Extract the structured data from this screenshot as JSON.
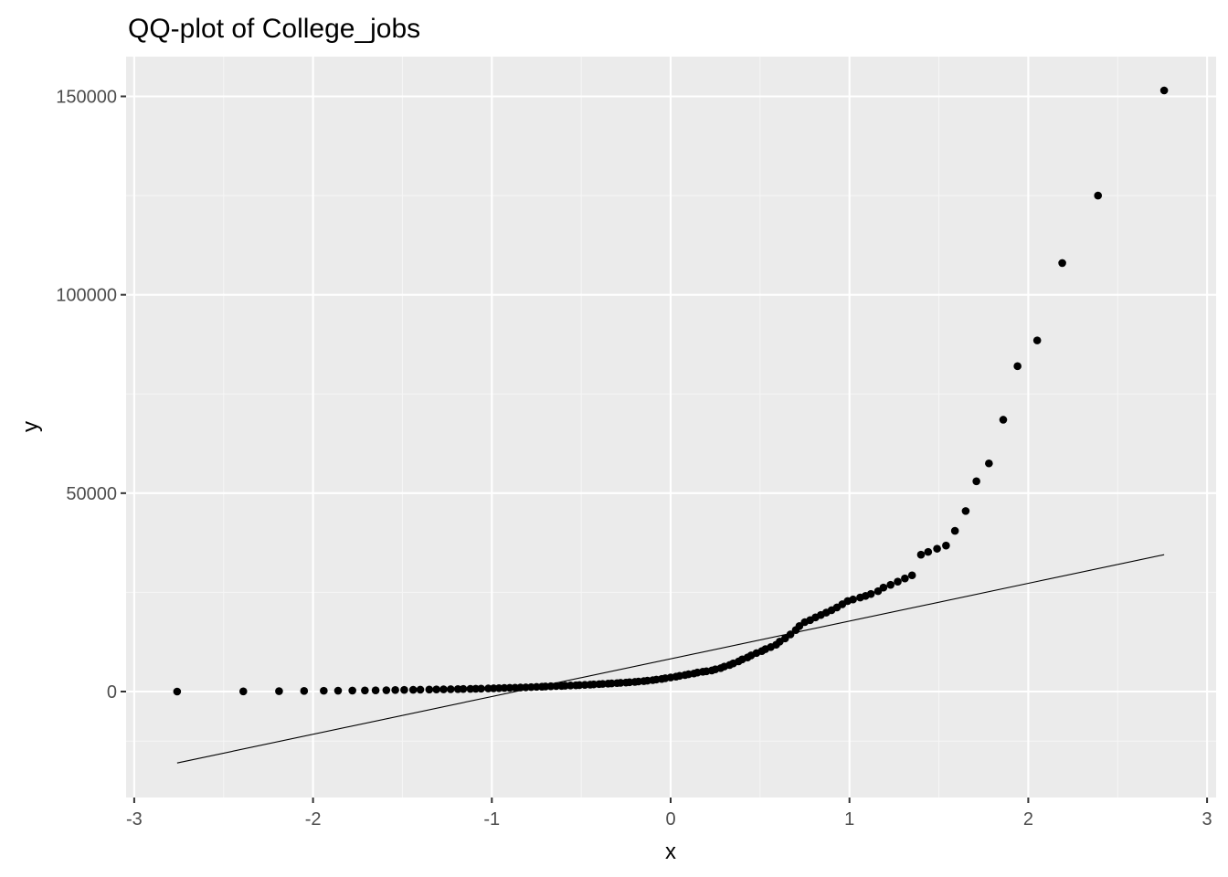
{
  "chart_data": {
    "type": "scatter",
    "title": "QQ-plot of College_jobs",
    "xlabel": "x",
    "ylabel": "y",
    "xlim": [
      -3,
      3
    ],
    "ylim": [
      -25000,
      160000
    ],
    "x_ticks": [
      -3,
      -2,
      -1,
      0,
      1,
      2,
      3
    ],
    "y_ticks": [
      0,
      50000,
      100000,
      150000
    ],
    "x_tick_labels": [
      "-3",
      "-2",
      "-1",
      "0",
      "1",
      "2",
      "3"
    ],
    "y_tick_labels": [
      "0",
      "50000",
      "100000",
      "150000"
    ],
    "grid": true,
    "legend": "none",
    "colors": {
      "panel": "#ebebeb",
      "grid_major": "#ffffff",
      "grid_minor": "#f5f5f5",
      "points": "#000000",
      "line": "#000000"
    },
    "reference_line": {
      "x": [
        -2.76,
        2.76
      ],
      "y": [
        -18000,
        34500
      ]
    },
    "series": [
      {
        "values": [
          [
            -2.76,
            0
          ],
          [
            -2.39,
            50
          ],
          [
            -2.19,
            100
          ],
          [
            -2.05,
            150
          ],
          [
            -1.94,
            200
          ],
          [
            -1.86,
            220
          ],
          [
            -1.78,
            250
          ],
          [
            -1.71,
            280
          ],
          [
            -1.65,
            300
          ],
          [
            -1.59,
            340
          ],
          [
            -1.54,
            380
          ],
          [
            -1.49,
            410
          ],
          [
            -1.44,
            440
          ],
          [
            -1.4,
            470
          ],
          [
            -1.35,
            500
          ],
          [
            -1.31,
            530
          ],
          [
            -1.27,
            560
          ],
          [
            -1.23,
            590
          ],
          [
            -1.19,
            620
          ],
          [
            -1.16,
            650
          ],
          [
            -1.12,
            680
          ],
          [
            -1.09,
            710
          ],
          [
            -1.06,
            740
          ],
          [
            -1.02,
            780
          ],
          [
            -0.99,
            820
          ],
          [
            -0.96,
            860
          ],
          [
            -0.93,
            900
          ],
          [
            -0.9,
            940
          ],
          [
            -0.87,
            980
          ],
          [
            -0.84,
            1020
          ],
          [
            -0.81,
            1060
          ],
          [
            -0.78,
            1120
          ],
          [
            -0.75,
            1180
          ],
          [
            -0.72,
            1230
          ],
          [
            -0.7,
            1280
          ],
          [
            -0.67,
            1330
          ],
          [
            -0.64,
            1380
          ],
          [
            -0.61,
            1430
          ],
          [
            -0.59,
            1480
          ],
          [
            -0.56,
            1530
          ],
          [
            -0.53,
            1580
          ],
          [
            -0.51,
            1630
          ],
          [
            -0.48,
            1690
          ],
          [
            -0.45,
            1750
          ],
          [
            -0.43,
            1810
          ],
          [
            -0.4,
            1870
          ],
          [
            -0.38,
            1930
          ],
          [
            -0.35,
            1990
          ],
          [
            -0.33,
            2060
          ],
          [
            -0.3,
            2130
          ],
          [
            -0.28,
            2200
          ],
          [
            -0.25,
            2270
          ],
          [
            -0.23,
            2350
          ],
          [
            -0.2,
            2440
          ],
          [
            -0.18,
            2530
          ],
          [
            -0.15,
            2630
          ],
          [
            -0.13,
            2750
          ],
          [
            -0.1,
            2880
          ],
          [
            -0.08,
            3020
          ],
          [
            -0.05,
            3180
          ],
          [
            -0.03,
            3350
          ],
          [
            0.0,
            3550
          ],
          [
            0.03,
            3750
          ],
          [
            0.05,
            3950
          ],
          [
            0.08,
            4150
          ],
          [
            0.1,
            4350
          ],
          [
            0.13,
            4550
          ],
          [
            0.15,
            4800
          ],
          [
            0.18,
            5000
          ],
          [
            0.2,
            5100
          ],
          [
            0.23,
            5300
          ],
          [
            0.25,
            5600
          ],
          [
            0.28,
            5900
          ],
          [
            0.3,
            6300
          ],
          [
            0.33,
            6700
          ],
          [
            0.35,
            7100
          ],
          [
            0.38,
            7600
          ],
          [
            0.4,
            8100
          ],
          [
            0.43,
            8600
          ],
          [
            0.45,
            9100
          ],
          [
            0.48,
            9700
          ],
          [
            0.51,
            10200
          ],
          [
            0.53,
            10700
          ],
          [
            0.56,
            11200
          ],
          [
            0.59,
            11800
          ],
          [
            0.61,
            12600
          ],
          [
            0.64,
            13400
          ],
          [
            0.67,
            14400
          ],
          [
            0.7,
            15500
          ],
          [
            0.72,
            16500
          ],
          [
            0.75,
            17500
          ],
          [
            0.78,
            18000
          ],
          [
            0.81,
            18700
          ],
          [
            0.84,
            19300
          ],
          [
            0.87,
            19900
          ],
          [
            0.9,
            20500
          ],
          [
            0.93,
            21200
          ],
          [
            0.96,
            22000
          ],
          [
            0.99,
            22800
          ],
          [
            1.02,
            23200
          ],
          [
            1.06,
            23700
          ],
          [
            1.09,
            24100
          ],
          [
            1.12,
            24600
          ],
          [
            1.16,
            25300
          ],
          [
            1.19,
            26200
          ],
          [
            1.23,
            26900
          ],
          [
            1.27,
            27700
          ],
          [
            1.31,
            28500
          ],
          [
            1.35,
            29300
          ],
          [
            1.4,
            34500
          ],
          [
            1.44,
            35200
          ],
          [
            1.49,
            36000
          ],
          [
            1.54,
            36800
          ],
          [
            1.59,
            40500
          ],
          [
            1.65,
            45500
          ],
          [
            1.71,
            53000
          ],
          [
            1.78,
            57500
          ],
          [
            1.86,
            68500
          ],
          [
            1.94,
            82000
          ],
          [
            2.05,
            88500
          ],
          [
            2.19,
            108000
          ],
          [
            2.39,
            125000
          ],
          [
            2.76,
            151500
          ]
        ]
      }
    ]
  }
}
